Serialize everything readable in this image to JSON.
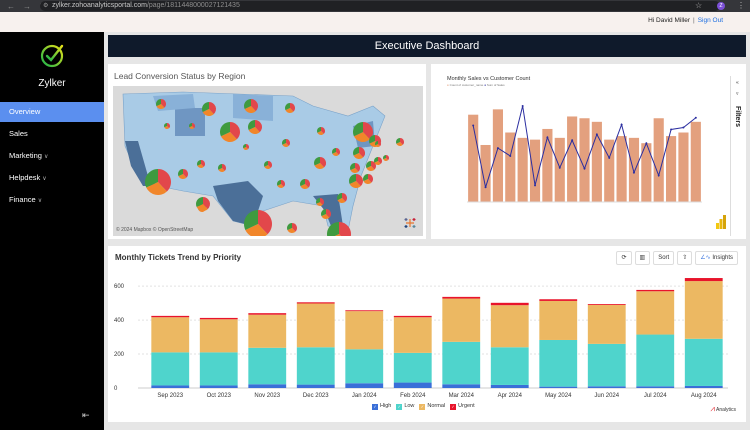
{
  "browser": {
    "url_host": "zylker.zohoanalyticsportal.com",
    "url_path": "/page/1811448000027121435",
    "profile_initial": "Z"
  },
  "topbar": {
    "greeting": "Hi David Miller",
    "separator": "|",
    "sign_out": "Sign Out"
  },
  "sidebar": {
    "brand": "Zylker",
    "items": [
      {
        "label": "Overview",
        "active": true,
        "has_chevron": false
      },
      {
        "label": "Sales",
        "active": false,
        "has_chevron": false
      },
      {
        "label": "Marketing",
        "active": false,
        "has_chevron": true
      },
      {
        "label": "Helpdesk",
        "active": false,
        "has_chevron": true
      },
      {
        "label": "Finance",
        "active": false,
        "has_chevron": true
      }
    ]
  },
  "header": {
    "title": "Executive Dashboard"
  },
  "map_card": {
    "title": "Lead Conversion Status by Region",
    "credit": "© 2024 Mapbox  © OpenStreetMap",
    "pie_colors": [
      "#e2474b",
      "#f1862a",
      "#3f9a3f"
    ]
  },
  "pbi_card": {
    "title": "Monthly Sales vs Customer Count",
    "legend": [
      "Count of customer_name",
      "Sum of Sales"
    ],
    "filters_label": "Filters",
    "bar_color": "#e3a07e",
    "line_color": "#2b2ea0"
  },
  "tickets_card": {
    "title": "Monthly Tickets Trend by Priority",
    "tools": {
      "sort": "Sort",
      "insights": "Insights"
    },
    "brand": "Analytics"
  },
  "chart_data": {
    "type": "bar",
    "stacked": true,
    "title": "Monthly Tickets Trend by Priority",
    "categories": [
      "Sep 2023",
      "Oct 2023",
      "Nov 2023",
      "Dec 2023",
      "Jan 2024",
      "Feb 2024",
      "Mar 2024",
      "Apr 2024",
      "May 2024",
      "Jun 2024",
      "Jul 2024",
      "Aug 2024"
    ],
    "series": [
      {
        "name": "High",
        "color": "#3a6fd8",
        "values": [
          15,
          15,
          22,
          20,
          28,
          32,
          22,
          18,
          8,
          10,
          10,
          12
        ]
      },
      {
        "name": "Low",
        "color": "#4fd4cc",
        "values": [
          195,
          195,
          215,
          220,
          200,
          175,
          250,
          222,
          275,
          250,
          305,
          278
        ]
      },
      {
        "name": "Normal",
        "color": "#ecb862",
        "values": [
          207,
          195,
          195,
          258,
          225,
          210,
          255,
          248,
          230,
          230,
          255,
          340
        ]
      },
      {
        "name": "Urgent",
        "color": "#e8142b",
        "values": [
          8,
          8,
          9,
          7,
          5,
          8,
          10,
          14,
          10,
          5,
          8,
          18
        ]
      }
    ],
    "yticks": [
      0,
      200,
      400,
      600
    ],
    "ylim": [
      0,
      660
    ],
    "grid": true,
    "legend": "bottom"
  }
}
